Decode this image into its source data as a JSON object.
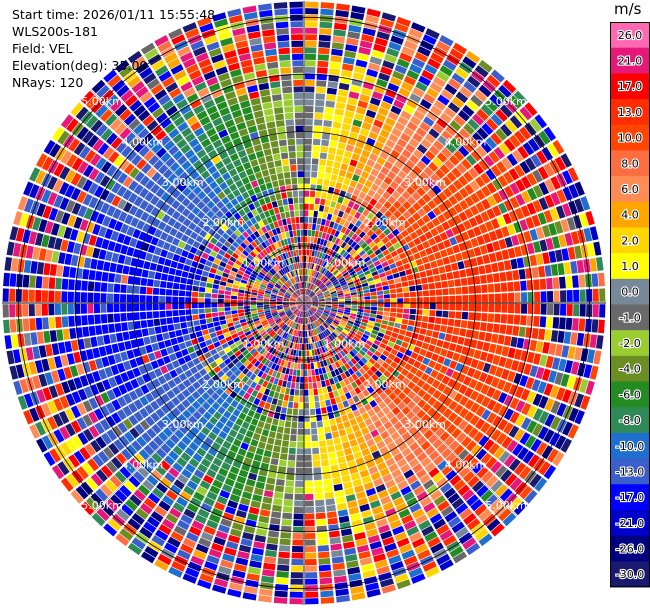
{
  "header": {
    "start_time": "Start time: 2026/01/11 15:55:48",
    "instrument": "WLS200s-181",
    "field": "Field: VEL",
    "elevation": "Elevation(deg): 35.00",
    "nrays": "NRays: 120"
  },
  "colorbar": {
    "unit": "m/s",
    "ticks": [
      "26.0",
      "21.0",
      "17.0",
      "13.0",
      "10.0",
      "8.0",
      "6.0",
      "4.0",
      "2.0",
      "1.0",
      "0.0",
      "-1.0",
      "-2.0",
      "-4.0",
      "-6.0",
      "-8.0",
      "-10.0",
      "-13.0",
      "-17.0",
      "-21.0",
      "-26.0",
      "-30.0"
    ],
    "colors": [
      "#ff69b4",
      "#e6197a",
      "#ff0000",
      "#ff2d00",
      "#ff4500",
      "#ff6e40",
      "#ff8c55",
      "#ffa500",
      "#ffd700",
      "#ffff00",
      "#778899",
      "#696969",
      "#9acd32",
      "#6b8e23",
      "#228b22",
      "#2e8b57",
      "#1e6fd0",
      "#3a5fcd",
      "#0000ff",
      "#0000cd",
      "#000080",
      "#191970"
    ]
  },
  "chart_data": {
    "type": "heatmap",
    "plot_kind": "PPI polar scan",
    "field": "VEL",
    "units": "m/s",
    "nrays": 120,
    "range_rings_km": [
      1.0,
      2.0,
      3.0,
      4.0,
      5.0
    ],
    "range_ring_labels": [
      "1.00km",
      "2.00km",
      "3.00km",
      "4.00km",
      "5.00km"
    ],
    "color_levels": [
      -30.0,
      -26.0,
      -21.0,
      -17.0,
      -13.0,
      -10.0,
      -8.0,
      -6.0,
      -4.0,
      -2.0,
      -1.0,
      0.0,
      1.0,
      2.0,
      4.0,
      6.0,
      8.0,
      10.0,
      13.0,
      17.0,
      21.0,
      26.0
    ]
  }
}
